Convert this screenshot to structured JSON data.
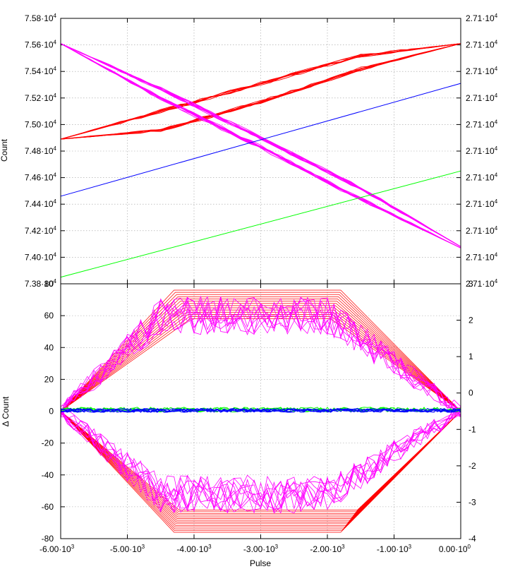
{
  "chart_data": [
    {
      "type": "line",
      "panel": "top",
      "ylabel": "Count",
      "xlim": [
        -6000,
        0
      ],
      "ylim": [
        73800,
        75800
      ],
      "x_ticks": [
        {
          "value": -6000,
          "mant": "-6.00",
          "exp": "3"
        },
        {
          "value": -5000,
          "mant": "-5.00",
          "exp": "3"
        },
        {
          "value": -4000,
          "mant": "-4.00",
          "exp": "3"
        },
        {
          "value": -3000,
          "mant": "-3.00",
          "exp": "3"
        },
        {
          "value": -2000,
          "mant": "-2.00",
          "exp": "3"
        },
        {
          "value": -1000,
          "mant": "-1.00",
          "exp": "3"
        },
        {
          "value": 0,
          "mant": "0.00",
          "exp": "0"
        }
      ],
      "y_ticks": [
        {
          "value": 73800,
          "mant": "7.38",
          "exp": "4"
        },
        {
          "value": 74000,
          "mant": "7.40",
          "exp": "4"
        },
        {
          "value": 74200,
          "mant": "7.42",
          "exp": "4"
        },
        {
          "value": 74400,
          "mant": "7.44",
          "exp": "4"
        },
        {
          "value": 74600,
          "mant": "7.46",
          "exp": "4"
        },
        {
          "value": 74800,
          "mant": "7.48",
          "exp": "4"
        },
        {
          "value": 75000,
          "mant": "7.50",
          "exp": "4"
        },
        {
          "value": 75200,
          "mant": "7.52",
          "exp": "4"
        },
        {
          "value": 75400,
          "mant": "7.54",
          "exp": "4"
        },
        {
          "value": 75600,
          "mant": "7.56",
          "exp": "4"
        },
        {
          "value": 75800,
          "mant": "7.58",
          "exp": "4"
        }
      ],
      "y2_ticks": [
        {
          "mant": "2.71",
          "exp": "4"
        },
        {
          "mant": "2.71",
          "exp": "4"
        },
        {
          "mant": "2.71",
          "exp": "4"
        },
        {
          "mant": "2.71",
          "exp": "4"
        },
        {
          "mant": "2.71",
          "exp": "4"
        },
        {
          "mant": "2.71",
          "exp": "4"
        },
        {
          "mant": "2.71",
          "exp": "4"
        },
        {
          "mant": "2.71",
          "exp": "4"
        },
        {
          "mant": "2.71",
          "exp": "4"
        },
        {
          "mant": "2.71",
          "exp": "4"
        },
        {
          "mant": "2.71",
          "exp": "4"
        }
      ],
      "series": [
        {
          "color": "#ff0000",
          "kind": "loop",
          "x": [
            -6000,
            -4500,
            -3000,
            -1500,
            0
          ],
          "upper": [
            74890,
            75100,
            75310,
            75520,
            75610
          ],
          "lower": [
            74890,
            74960,
            75170,
            75420,
            75610
          ],
          "repeats": 8
        },
        {
          "color": "#ff00ff",
          "kind": "loop",
          "x": [
            -6000,
            -4500,
            -3000,
            -1500,
            0
          ],
          "upper": [
            75610,
            75270,
            74900,
            74520,
            74080
          ],
          "lower": [
            75610,
            75200,
            74830,
            74440,
            74070
          ],
          "repeats": 10
        },
        {
          "color": "#0000ff",
          "kind": "line",
          "x": [
            -6000,
            0
          ],
          "y": [
            74460,
            75310
          ]
        },
        {
          "color": "#00ff00",
          "kind": "line",
          "x": [
            -6000,
            0
          ],
          "y": [
            73850,
            74650
          ]
        }
      ]
    },
    {
      "type": "line",
      "panel": "bottom",
      "xlabel": "Pulse",
      "ylabel": "Δ Count",
      "xlim": [
        -6000,
        0
      ],
      "ylim": [
        -80,
        80
      ],
      "y2lim": [
        -4,
        3
      ],
      "y_ticks": [
        -80,
        -60,
        -40,
        -20,
        0,
        20,
        40,
        60,
        80
      ],
      "y2_ticks": [
        -4,
        -3,
        -2,
        -1,
        0,
        1,
        2,
        3
      ],
      "series": [
        {
          "color": "#ff0000",
          "kind": "envelope",
          "x": [
            -6000,
            -4300,
            -1800,
            0
          ],
          "upper_top": 76,
          "upper_bottom": 58,
          "lower_top": -62,
          "lower_bottom": -76,
          "repeats": 14
        },
        {
          "color": "#ff00ff",
          "kind": "noisy-envelope",
          "x": [
            -6000,
            -4500,
            -2000,
            0
          ],
          "upper_level": 60,
          "lower_level": -52,
          "noise": 10,
          "repeats": 10
        },
        {
          "color": "#00ff00",
          "kind": "band",
          "x": [
            -6000,
            0
          ],
          "center": 1,
          "noise": 1.5,
          "repeats": 4
        },
        {
          "color": "#0000ff",
          "kind": "band",
          "x": [
            -6000,
            0
          ],
          "center": 0.5,
          "noise": 1.2,
          "repeats": 6
        }
      ]
    }
  ]
}
